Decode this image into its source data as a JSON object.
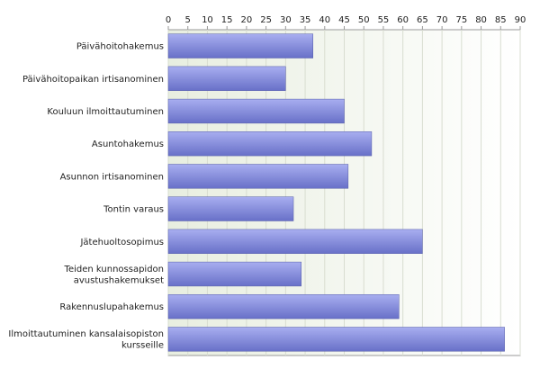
{
  "chart_data": {
    "type": "bar",
    "orientation": "horizontal",
    "categories": [
      [
        "Päivähoitohakemus"
      ],
      [
        "Päivähoitopaikan irtisanominen"
      ],
      [
        "Kouluun ilmoittautuminen"
      ],
      [
        "Asuntohakemus"
      ],
      [
        "Asunnon irtisanominen"
      ],
      [
        "Tontin varaus"
      ],
      [
        "Jätehuoltosopimus"
      ],
      [
        "Teiden kunnossapidon",
        "avustushakemukset"
      ],
      [
        "Rakennuslupahakemus"
      ],
      [
        "Ilmoittautuminen kansalaisopiston",
        "kursseille"
      ]
    ],
    "values": [
      37,
      30,
      45,
      52,
      46,
      32,
      65,
      34,
      59,
      86
    ],
    "xlim": [
      0,
      90
    ],
    "xticks": [
      "0",
      "5",
      "10",
      "15",
      "20",
      "25",
      "30",
      "35",
      "40",
      "45",
      "50",
      "55",
      "60",
      "65",
      "70",
      "75",
      "80",
      "85",
      "90"
    ],
    "xaxis_position": "top",
    "grid": "vertical",
    "title": "",
    "xlabel": "",
    "ylabel": "",
    "colors": {
      "bar_top": "#a8aef0",
      "bar_bottom": "#6870c8",
      "bar_stroke": "#555ca8",
      "grid": "#d8ddd0",
      "plot_bg_left": "#e8eee0",
      "plot_bg_right": "#ffffff",
      "axis": "#999999"
    }
  }
}
